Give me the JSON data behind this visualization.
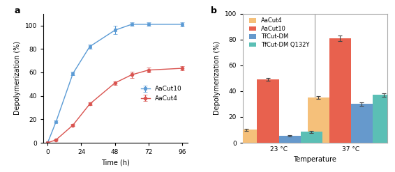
{
  "panel_a": {
    "title": "a",
    "xlabel": "Time (h)",
    "ylabel": "Depolymerization (%)",
    "ylim": [
      0,
      110
    ],
    "yticks": [
      0,
      20,
      40,
      60,
      80,
      100
    ],
    "xlim": [
      -3,
      100
    ],
    "xticks": [
      0,
      24,
      48,
      72,
      96
    ],
    "series": [
      {
        "label": "AaCut10",
        "color": "#5b9bd5",
        "marker": "s",
        "x": [
          0,
          6,
          18,
          30,
          48,
          60,
          72,
          96
        ],
        "y": [
          0,
          18,
          59,
          82,
          96,
          101,
          101,
          101
        ],
        "yerr": [
          0.3,
          0.8,
          1.5,
          2.0,
          3.5,
          1.5,
          1.5,
          1.8
        ]
      },
      {
        "label": "AaCut4",
        "color": "#d9534f",
        "marker": "o",
        "x": [
          0,
          6,
          18,
          30,
          48,
          60,
          72,
          96
        ],
        "y": [
          0,
          2.5,
          15,
          33,
          51,
          58,
          62,
          63.5
        ],
        "yerr": [
          0.3,
          0.5,
          0.8,
          1.2,
          1.5,
          2.5,
          2.0,
          2.0
        ]
      }
    ]
  },
  "panel_b": {
    "title": "b",
    "xlabel": "Temperature",
    "ylabel": "Depolymerization (%)",
    "ylim": [
      0,
      100
    ],
    "yticks": [
      0,
      20,
      40,
      60,
      80,
      100
    ],
    "groups": [
      "23 °C",
      "37 °C"
    ],
    "series": [
      {
        "label": "AaCut4",
        "color": "#f5c07a",
        "values": [
          10,
          35
        ],
        "yerr": [
          0.7,
          1.2
        ]
      },
      {
        "label": "AaCut10",
        "color": "#e8614e",
        "values": [
          49,
          81
        ],
        "yerr": [
          1.0,
          2.0
        ]
      },
      {
        "label": "TfCut-DM",
        "color": "#6699cc",
        "values": [
          5.5,
          30
        ],
        "yerr": [
          0.5,
          1.2
        ]
      },
      {
        "label": "TfCut-DM Q132Y",
        "color": "#5bbfb5",
        "values": [
          8.5,
          37
        ],
        "yerr": [
          0.8,
          1.2
        ]
      }
    ],
    "bar_width": 0.15,
    "group_centers": [
      0.25,
      0.75
    ]
  }
}
